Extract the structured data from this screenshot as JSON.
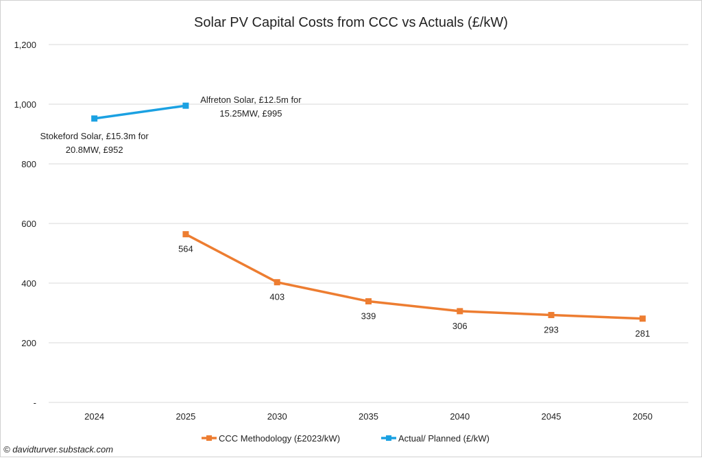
{
  "chart_data": {
    "type": "line",
    "title": "Solar PV Capital Costs from CCC vs Actuals (£/kW)",
    "xlabel": "",
    "ylabel": "",
    "categories": [
      "2024",
      "2025",
      "2030",
      "2035",
      "2040",
      "2045",
      "2050"
    ],
    "ylim": [
      0,
      1200
    ],
    "yticks": [
      0,
      200,
      400,
      600,
      800,
      1000,
      1200
    ],
    "ytick_labels": [
      "-",
      "200",
      "400",
      "600",
      "800",
      "1,000",
      "1,200"
    ],
    "grid": true,
    "legend_position": "bottom",
    "series": [
      {
        "name": "CCC Methodology (£2023/kW)",
        "color": "#ED7D31",
        "values": [
          null,
          564,
          403,
          339,
          306,
          293,
          281
        ],
        "labels": [
          null,
          "564",
          "403",
          "339",
          "306",
          "293",
          "281"
        ]
      },
      {
        "name": "Actual/ Planned (£/kW)",
        "color": "#1BA1E2",
        "values": [
          952,
          995,
          null,
          null,
          null,
          null,
          null
        ],
        "labels": [
          [
            "Stokeford Solar, £15.3m for",
            "20.8MW, £952"
          ],
          [
            "Alfreton Solar, £12.5m for",
            "15.25MW, £995"
          ],
          null,
          null,
          null,
          null,
          null
        ]
      }
    ]
  },
  "credit": "© davidturver.substack.com"
}
